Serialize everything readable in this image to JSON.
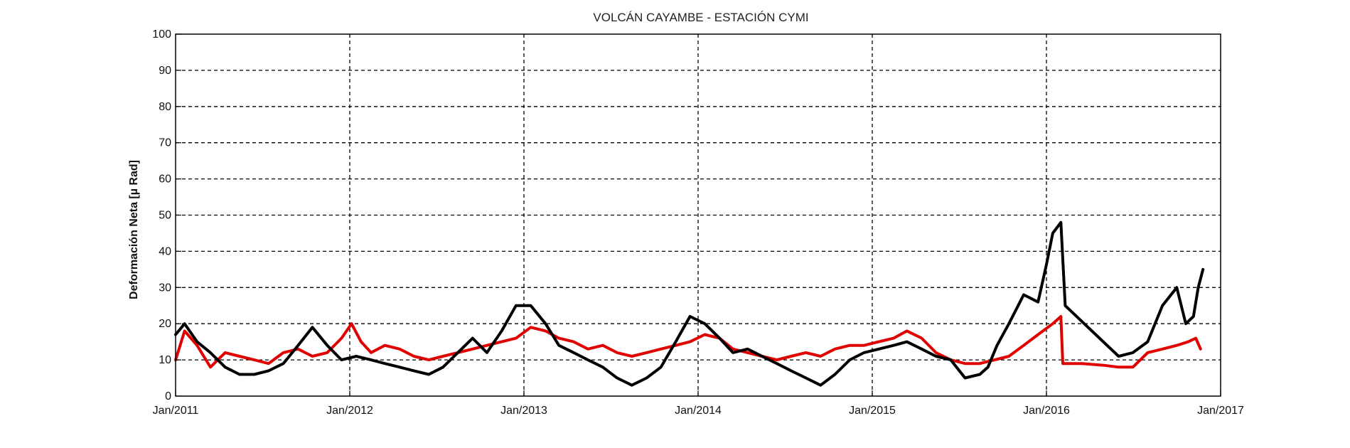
{
  "chart_data": {
    "type": "line",
    "title": "VOLCÁN CAYAMBE - ESTACIÓN CYMI",
    "xlabel": "",
    "ylabel": "Deformación Neta [µ Rad]",
    "xlim": [
      "2011-01-01",
      "2017-01-01"
    ],
    "ylim": [
      0,
      100
    ],
    "grid": true,
    "x_tick_labels": [
      "Jan/2011",
      "Jan/2012",
      "Jan/2013",
      "Jan/2014",
      "Jan/2015",
      "Jan/2016",
      "Jan/2017"
    ],
    "y_tick_labels": [
      "0",
      "10",
      "20",
      "30",
      "40",
      "50",
      "60",
      "70",
      "80",
      "90",
      "100"
    ],
    "series": [
      {
        "color": "#e00000",
        "x": [
          "2011-01-01",
          "2011-01-20",
          "2011-02-15",
          "2011-03-15",
          "2011-04-15",
          "2011-05-15",
          "2011-06-15",
          "2011-07-15",
          "2011-08-15",
          "2011-09-15",
          "2011-10-15",
          "2011-11-15",
          "2011-12-15",
          "2012-01-05",
          "2012-01-25",
          "2012-02-15",
          "2012-03-15",
          "2012-04-15",
          "2012-05-15",
          "2012-06-15",
          "2012-07-15",
          "2012-08-15",
          "2012-09-15",
          "2012-10-15",
          "2012-11-15",
          "2012-12-15",
          "2013-01-15",
          "2013-02-15",
          "2013-03-15",
          "2013-04-15",
          "2013-05-15",
          "2013-06-15",
          "2013-07-15",
          "2013-08-15",
          "2013-09-15",
          "2013-10-15",
          "2013-11-15",
          "2013-12-15",
          "2014-01-15",
          "2014-02-15",
          "2014-03-15",
          "2014-04-15",
          "2014-05-15",
          "2014-06-15",
          "2014-07-15",
          "2014-08-15",
          "2014-09-15",
          "2014-10-15",
          "2014-11-15",
          "2014-12-15",
          "2015-01-15",
          "2015-02-15",
          "2015-03-15",
          "2015-04-15",
          "2015-05-15",
          "2015-06-15",
          "2015-07-15",
          "2015-08-15",
          "2015-09-15",
          "2015-10-15",
          "2015-11-15",
          "2015-12-15",
          "2016-01-15",
          "2016-02-01",
          "2016-02-05",
          "2016-03-15",
          "2016-05-01",
          "2016-06-01",
          "2016-07-01",
          "2016-08-01",
          "2016-09-01",
          "2016-10-01",
          "2016-10-25",
          "2016-11-10",
          "2016-11-20"
        ],
        "y": [
          10,
          18,
          14,
          8,
          12,
          11,
          10,
          9,
          12,
          13,
          11,
          12,
          16,
          20,
          15,
          12,
          14,
          13,
          11,
          10,
          11,
          12,
          13,
          14,
          15,
          16,
          19,
          18,
          16,
          15,
          13,
          14,
          12,
          11,
          12,
          13,
          14,
          15,
          17,
          16,
          13,
          12,
          11,
          10,
          11,
          12,
          11,
          13,
          14,
          14,
          15,
          16,
          18,
          16,
          12,
          10,
          9,
          9,
          10,
          11,
          14,
          17,
          20,
          22,
          9,
          9,
          8.5,
          8,
          8,
          12,
          13,
          14,
          15,
          16,
          13
        ]
      },
      {
        "color": "#000000",
        "x": [
          "2011-01-01",
          "2011-01-20",
          "2011-02-15",
          "2011-03-15",
          "2011-04-15",
          "2011-05-15",
          "2011-06-15",
          "2011-07-15",
          "2011-08-15",
          "2011-09-15",
          "2011-10-15",
          "2011-11-15",
          "2011-12-15",
          "2012-01-15",
          "2012-02-15",
          "2012-03-15",
          "2012-04-15",
          "2012-05-15",
          "2012-06-15",
          "2012-07-15",
          "2012-08-15",
          "2012-09-15",
          "2012-10-15",
          "2012-11-15",
          "2012-12-15",
          "2013-01-15",
          "2013-02-15",
          "2013-03-15",
          "2013-04-15",
          "2013-05-15",
          "2013-06-15",
          "2013-07-15",
          "2013-08-15",
          "2013-09-15",
          "2013-10-15",
          "2013-11-15",
          "2013-12-15",
          "2014-01-15",
          "2014-02-15",
          "2014-03-15",
          "2014-04-15",
          "2014-05-15",
          "2014-06-15",
          "2014-07-15",
          "2014-08-15",
          "2014-09-15",
          "2014-10-15",
          "2014-11-15",
          "2014-12-15",
          "2015-01-15",
          "2015-02-15",
          "2015-03-15",
          "2015-04-15",
          "2015-05-15",
          "2015-06-15",
          "2015-07-15",
          "2015-08-15",
          "2015-09-01",
          "2015-09-20",
          "2015-10-15",
          "2015-11-15",
          "2015-12-15",
          "2016-01-01",
          "2016-01-15",
          "2016-02-01",
          "2016-02-10",
          "2016-06-01",
          "2016-07-01",
          "2016-08-01",
          "2016-09-01",
          "2016-10-01",
          "2016-10-20",
          "2016-11-05",
          "2016-11-15",
          "2016-11-25"
        ],
        "y": [
          17,
          20,
          15,
          12,
          8,
          6,
          6,
          7,
          9,
          14,
          19,
          14,
          10,
          11,
          10,
          9,
          8,
          7,
          6,
          8,
          12,
          16,
          12,
          18,
          25,
          25,
          20,
          14,
          12,
          10,
          8,
          5,
          3,
          5,
          8,
          15,
          22,
          20,
          16,
          12,
          13,
          11,
          9,
          7,
          5,
          3,
          6,
          10,
          12,
          13,
          14,
          15,
          13,
          11,
          10,
          5,
          6,
          8,
          14,
          20,
          28,
          26,
          36,
          45,
          48,
          25,
          11,
          12,
          15,
          25,
          30,
          20,
          22,
          30,
          35
        ]
      }
    ]
  }
}
